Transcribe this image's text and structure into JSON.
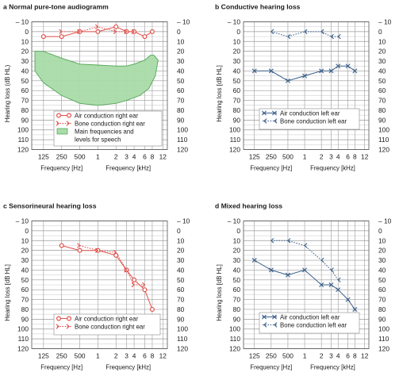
{
  "colors": {
    "air_right": "#e0504a",
    "bone_right": "#e0504a",
    "air_left": "#3a5f8a",
    "bone_left": "#3a5f8a",
    "speech_fill": "#a9dca8",
    "speech_stroke": "#4aa24e",
    "grid_major": "#9a9a9a",
    "grid_minor": "#c8c8c8",
    "text": "#1a1a1a"
  },
  "chart_data": [
    {
      "type": "line",
      "title": "a  Normal pure-tone audiogramm",
      "ylabel": "Hearing loss (dB HL)",
      "xlabel_hz": "Frequency [Hz]",
      "xlabel_khz": "Frequency [kHz]",
      "ylim": [
        -10,
        120
      ],
      "y_ticks_left": [
        "– 10",
        "0",
        "10",
        "20",
        "30",
        "40",
        "50",
        "60",
        "70",
        "80",
        "90",
        "100",
        "110",
        "120"
      ],
      "y_ticks_right": [
        "– 10",
        "0",
        "10",
        "20",
        "30",
        "40",
        "50",
        "60",
        "70",
        "80",
        "90",
        "100",
        "110",
        "120"
      ],
      "x_ticks": [
        "125",
        "250",
        "500",
        "1",
        "2",
        "3",
        "4",
        "6",
        "8",
        "12"
      ],
      "series": [
        {
          "name": "Air conduction right ear",
          "style": "solid",
          "marker": "circle",
          "color": "#e0504a",
          "points": [
            [
              125,
              5
            ],
            [
              250,
              5
            ],
            [
              500,
              0
            ],
            [
              1000,
              0
            ],
            [
              2000,
              -5
            ],
            [
              3000,
              0
            ],
            [
              4000,
              0
            ],
            [
              6000,
              5
            ],
            [
              8000,
              0
            ]
          ]
        },
        {
          "name": "Bone conduction right ear",
          "style": "dotted",
          "marker": "bone-right",
          "color": "#e0504a",
          "points": [
            [
              250,
              0
            ],
            [
              500,
              0
            ],
            [
              1000,
              -5
            ],
            [
              2000,
              0
            ],
            [
              3000,
              0
            ],
            [
              4000,
              0
            ]
          ]
        }
      ],
      "region": {
        "name": "Main frequencies and levels for speech",
        "fill": "#a9dca8",
        "stroke": "#4aa24e",
        "upper": [
          [
            90,
            20
          ],
          [
            125,
            20
          ],
          [
            250,
            27
          ],
          [
            500,
            33
          ],
          [
            1000,
            34
          ],
          [
            2000,
            35
          ],
          [
            3000,
            35
          ],
          [
            4000,
            33
          ],
          [
            6000,
            29
          ],
          [
            7500,
            24
          ],
          [
            8500,
            24
          ],
          [
            10000,
            29
          ]
        ],
        "lower": [
          [
            10000,
            29
          ],
          [
            9000,
            45
          ],
          [
            7000,
            58
          ],
          [
            5000,
            65
          ],
          [
            3000,
            70
          ],
          [
            2000,
            73
          ],
          [
            1000,
            75
          ],
          [
            500,
            73
          ],
          [
            250,
            65
          ],
          [
            125,
            52
          ],
          [
            90,
            40
          ]
        ]
      }
    },
    {
      "type": "line",
      "title": "b  Conductive hearing loss",
      "ylabel": "Hearing loss [dB HL]",
      "xlabel_hz": "Frequency [Hz]",
      "xlabel_khz": "Frequency [kHz]",
      "ylim": [
        -10,
        120
      ],
      "y_ticks_left": [
        "– 10",
        "0",
        "10",
        "20",
        "30",
        "40",
        "50",
        "60",
        "70",
        "80",
        "90",
        "100",
        "110",
        "120"
      ],
      "y_ticks_right": [
        "– 10",
        "0",
        "10",
        "20",
        "30",
        "40",
        "50",
        "60",
        "70",
        "80",
        "90",
        "100",
        "110",
        "120"
      ],
      "x_ticks": [
        "125",
        "250",
        "500",
        "1",
        "2",
        "3",
        "4",
        "6",
        "8",
        "12"
      ],
      "series": [
        {
          "name": "Air conduction left ear",
          "style": "solid",
          "marker": "cross",
          "color": "#3a5f8a",
          "points": [
            [
              125,
              40
            ],
            [
              250,
              40
            ],
            [
              500,
              50
            ],
            [
              1000,
              45
            ],
            [
              2000,
              40
            ],
            [
              3000,
              40
            ],
            [
              4000,
              35
            ],
            [
              6000,
              35
            ],
            [
              8000,
              40
            ]
          ]
        },
        {
          "name": "Bone conduction left ear",
          "style": "dotted",
          "marker": "bone-left",
          "color": "#3a5f8a",
          "points": [
            [
              250,
              0
            ],
            [
              500,
              5
            ],
            [
              1000,
              0
            ],
            [
              2000,
              0
            ],
            [
              3000,
              5
            ],
            [
              4000,
              5
            ]
          ]
        }
      ]
    },
    {
      "type": "line",
      "title": "c  Sensorineural hearing loss",
      "ylabel": "Hearing loss [dB HL]",
      "xlabel_hz": "Frequency [Hz]",
      "xlabel_khz": "Frequency [kHz]",
      "ylim": [
        -10,
        120
      ],
      "y_ticks_left": [
        "– 10",
        "0",
        "10",
        "20",
        "30",
        "40",
        "50",
        "60",
        "70",
        "80",
        "90",
        "100",
        "110",
        "120"
      ],
      "y_ticks_right": [
        "– 10",
        "0",
        "10",
        "20",
        "30",
        "40",
        "50",
        "60",
        "70",
        "80",
        "90",
        "100",
        "110",
        "120"
      ],
      "x_ticks": [
        "125",
        "250",
        "500",
        "1",
        "2",
        "3",
        "4",
        "6",
        "8",
        "12"
      ],
      "series": [
        {
          "name": "Air conduction right ear",
          "style": "solid",
          "marker": "circle",
          "color": "#e0504a",
          "points": [
            [
              250,
              15
            ],
            [
              500,
              20
            ],
            [
              1000,
              20
            ],
            [
              2000,
              25
            ],
            [
              3000,
              40
            ],
            [
              4000,
              50
            ],
            [
              6000,
              60
            ],
            [
              8000,
              80
            ]
          ]
        },
        {
          "name": "Bone conduction right ear",
          "style": "dotted",
          "marker": "bone-right",
          "color": "#e0504a",
          "points": [
            [
              500,
              15
            ],
            [
              1000,
              20
            ],
            [
              2000,
              22
            ],
            [
              3000,
              40
            ],
            [
              4000,
              55
            ],
            [
              6000,
              55
            ]
          ]
        }
      ]
    },
    {
      "type": "line",
      "title": "d  Mixed hearing loss",
      "ylabel": "Hearing loss [dB HL]",
      "xlabel_hz": "Frequency [Hz]",
      "xlabel_khz": "Frequency [kHz]",
      "ylim": [
        -10,
        120
      ],
      "y_ticks_left": [
        "– 10",
        "0",
        "10",
        "20",
        "30",
        "40",
        "50",
        "60",
        "70",
        "80",
        "90",
        "100",
        "110",
        "120"
      ],
      "y_ticks_right": [
        "– 10",
        "0",
        "10",
        "20",
        "30",
        "40",
        "50",
        "60",
        "70",
        "80",
        "90",
        "100",
        "110",
        "120"
      ],
      "x_ticks": [
        "125",
        "250",
        "500",
        "1",
        "2",
        "3",
        "4",
        "6",
        "8",
        "12"
      ],
      "series": [
        {
          "name": "Air conduction left ear",
          "style": "solid",
          "marker": "cross",
          "color": "#3a5f8a",
          "points": [
            [
              125,
              30
            ],
            [
              250,
              40
            ],
            [
              500,
              45
            ],
            [
              1000,
              40
            ],
            [
              2000,
              55
            ],
            [
              3000,
              55
            ],
            [
              4000,
              60
            ],
            [
              6000,
              70
            ],
            [
              8000,
              80
            ]
          ]
        },
        {
          "name": "Bone conduction left ear",
          "style": "dotted",
          "marker": "bone-left",
          "color": "#3a5f8a",
          "points": [
            [
              250,
              10
            ],
            [
              500,
              10
            ],
            [
              1000,
              15
            ],
            [
              2000,
              30
            ],
            [
              3000,
              40
            ],
            [
              4000,
              50
            ]
          ]
        }
      ]
    }
  ]
}
